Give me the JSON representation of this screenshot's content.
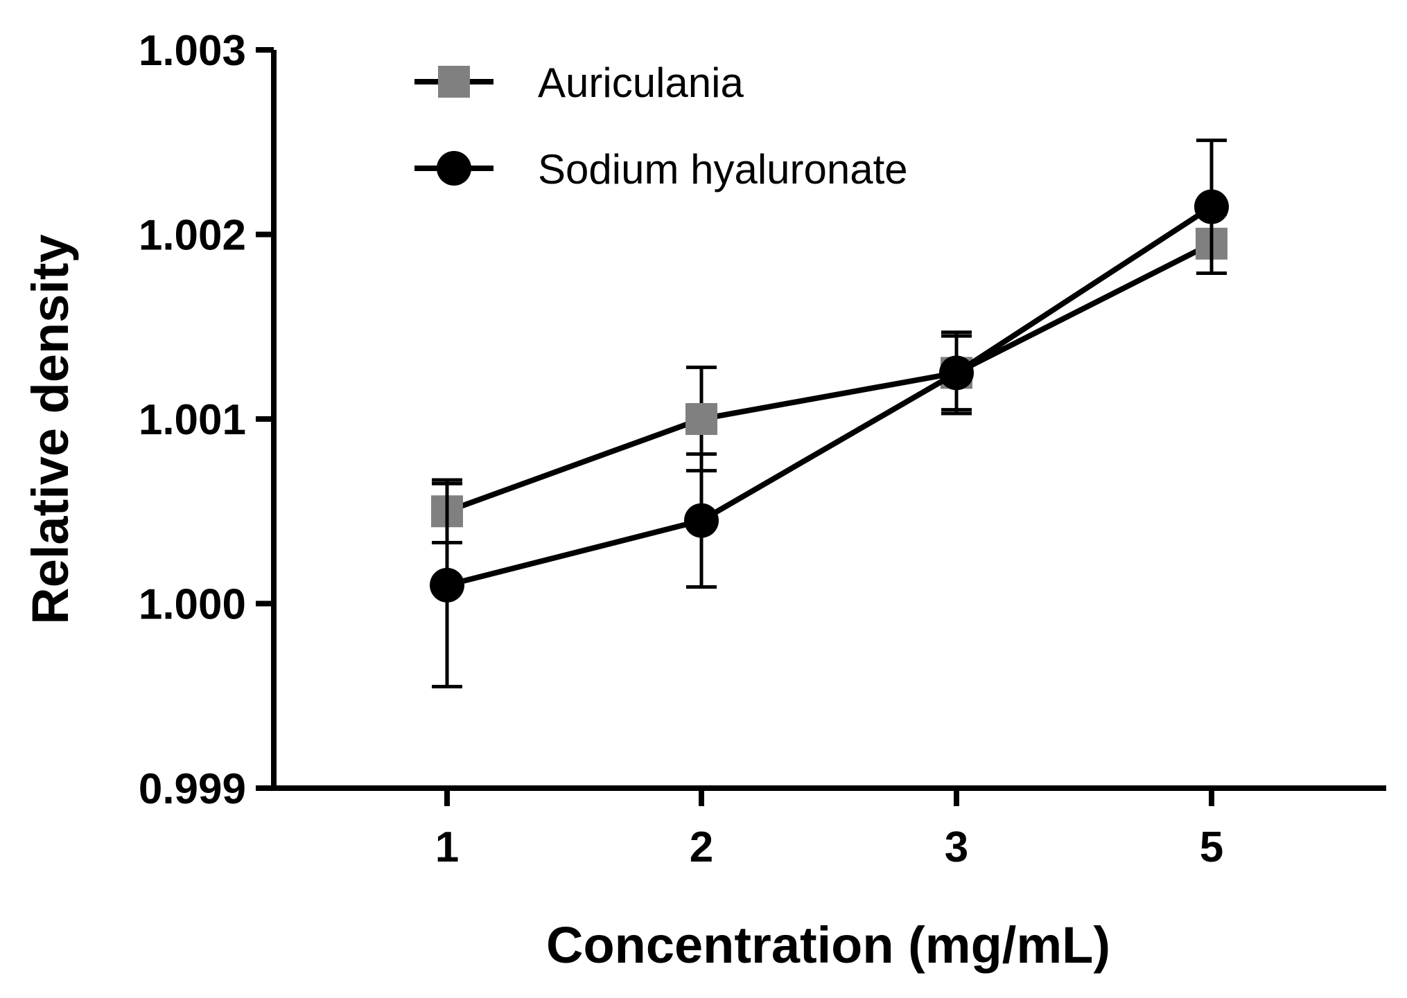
{
  "chart_data": {
    "type": "line",
    "title": "",
    "xlabel": "Concentration (mg/mL)",
    "ylabel": "Relative density",
    "categories": [
      "1",
      "2",
      "3",
      "5"
    ],
    "ylim": [
      0.999,
      1.003
    ],
    "yticks": [
      "0.999",
      "1.000",
      "1.001",
      "1.002",
      "1.003"
    ],
    "legend_position": "top-left",
    "grid": false,
    "series": [
      {
        "name": "Auriculania",
        "marker": "square",
        "color": "#808080",
        "values": [
          1.0005,
          1.001,
          1.00125,
          1.00195
        ],
        "error": [
          0.00017,
          0.00028,
          0.0002,
          0.00016
        ]
      },
      {
        "name": "Sodium hyaluronate",
        "marker": "circle",
        "color": "#000000",
        "values": [
          1.0001,
          1.00045,
          1.00125,
          1.00215
        ],
        "error": [
          0.00055,
          0.00036,
          0.00022,
          0.00036
        ]
      }
    ]
  }
}
